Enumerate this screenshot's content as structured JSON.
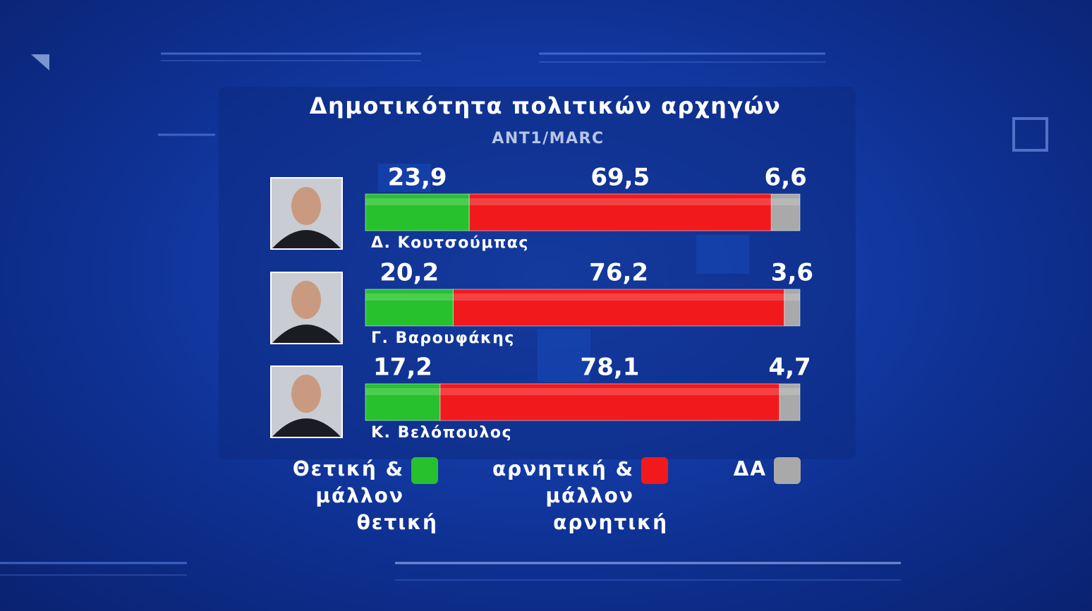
{
  "chart_data": {
    "type": "stacked-bar-horizontal",
    "title": "Δημοτικότητα πολιτικών αρχηγών",
    "subtitle": "ANT1/MARC",
    "categories": [
      "Δ. Κουτσούμπας",
      "Γ. Βαρουφάκης",
      "Κ. Βελόπουλος"
    ],
    "series": [
      {
        "name": "Θετική & μάλλον θετική",
        "color": "#27c12d",
        "values": [
          23.9,
          20.2,
          17.2
        ],
        "value_labels": [
          "23,9",
          "20,2",
          "17,2"
        ]
      },
      {
        "name": "αρνητική & μάλλον αρνητική",
        "color": "#f2191c",
        "values": [
          69.5,
          76.2,
          78.1
        ],
        "value_labels": [
          "69,5",
          "76,2",
          "78,1"
        ]
      },
      {
        "name": "ΔΑ",
        "color": "#a9a9a9",
        "values": [
          6.6,
          3.6,
          4.7
        ],
        "value_labels": [
          "6,6",
          "3,6",
          "4,7"
        ]
      }
    ]
  }
}
